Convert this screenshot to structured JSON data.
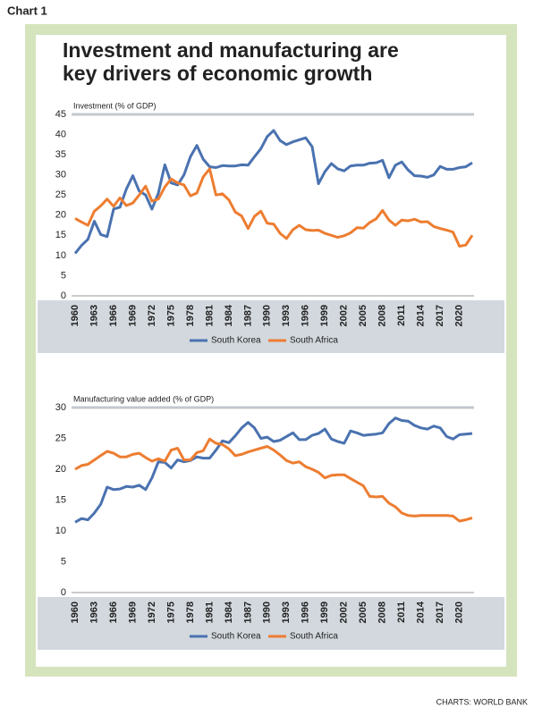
{
  "header": {
    "label": "Chart 1",
    "title": [
      "Investment and manufacturing are",
      "key drivers of economic growth"
    ]
  },
  "source": "CHARTS: WORLD BANK",
  "chart_data": [
    {
      "type": "line",
      "y_label": "Investment (% of GDP)",
      "x": [
        1960,
        1961,
        1962,
        1963,
        1964,
        1965,
        1966,
        1967,
        1968,
        1969,
        1970,
        1971,
        1972,
        1973,
        1974,
        1975,
        1976,
        1977,
        1978,
        1979,
        1980,
        1981,
        1982,
        1983,
        1984,
        1985,
        1986,
        1987,
        1988,
        1989,
        1990,
        1991,
        1992,
        1993,
        1994,
        1995,
        1996,
        1997,
        1998,
        1999,
        2000,
        2001,
        2002,
        2003,
        2004,
        2005,
        2006,
        2007,
        2008,
        2009,
        2010,
        2011,
        2012,
        2013,
        2014,
        2015,
        2016,
        2017,
        2018,
        2019,
        2020,
        2021,
        2022
      ],
      "xlim": [
        1960,
        2022
      ],
      "xticks": [
        1960,
        1963,
        1966,
        1969,
        1972,
        1975,
        1978,
        1981,
        1984,
        1987,
        1990,
        1993,
        1996,
        1999,
        2002,
        2005,
        2008,
        2011,
        2014,
        2017,
        2020
      ],
      "ylim": [
        0,
        45
      ],
      "yticks": [
        0,
        5,
        10,
        15,
        20,
        25,
        30,
        35,
        40,
        45
      ],
      "grid": false,
      "series": [
        {
          "name": "South Korea",
          "color": "#4a72b0",
          "values": [
            10.5,
            12.5,
            14,
            18.5,
            15.2,
            14.7,
            21.5,
            22,
            26.5,
            29.8,
            26,
            25,
            21.5,
            25.5,
            32.5,
            28,
            27.5,
            30,
            34.5,
            37.3,
            33.9,
            32,
            31.8,
            32.3,
            32.2,
            32.2,
            32.5,
            32.4,
            34.5,
            36.5,
            39.5,
            41,
            38.5,
            37.5,
            38.2,
            38.7,
            39.2,
            37,
            27.8,
            30.8,
            32.8,
            31.5,
            31,
            32.2,
            32.4,
            32.4,
            32.9,
            33,
            33.6,
            29.3,
            32.4,
            33.2,
            31.2,
            29.8,
            29.7,
            29.4,
            30,
            32.1,
            31.4,
            31.4,
            31.8,
            32,
            33
          ]
        },
        {
          "name": "South Africa",
          "color": "#ed7d31",
          "values": [
            19.2,
            18.3,
            17.5,
            21,
            22.3,
            24,
            22.2,
            24.3,
            22.4,
            23,
            25,
            27.2,
            23.5,
            24,
            27,
            29,
            28,
            27.5,
            24.8,
            25.5,
            29.5,
            31.5,
            25,
            25.3,
            23.8,
            20.8,
            19.8,
            16.7,
            19.7,
            21,
            18,
            17.8,
            15.5,
            14.2,
            16.4,
            17.5,
            16.4,
            16.2,
            16.3,
            15.5,
            15,
            14.5,
            14.9,
            15.6,
            16.9,
            16.8,
            18.2,
            19.1,
            21.2,
            18.8,
            17.5,
            18.8,
            18.6,
            19,
            18.3,
            18.4,
            17.2,
            16.7,
            16.3,
            15.8,
            12.3,
            12.6,
            15
          ]
        }
      ]
    },
    {
      "type": "line",
      "y_label": "Manufacturing value added (% of GDP)",
      "x": [
        1960,
        1961,
        1962,
        1963,
        1964,
        1965,
        1966,
        1967,
        1968,
        1969,
        1970,
        1971,
        1972,
        1973,
        1974,
        1975,
        1976,
        1977,
        1978,
        1979,
        1980,
        1981,
        1982,
        1983,
        1984,
        1985,
        1986,
        1987,
        1988,
        1989,
        1990,
        1991,
        1992,
        1993,
        1994,
        1995,
        1996,
        1997,
        1998,
        1999,
        2000,
        2001,
        2002,
        2003,
        2004,
        2005,
        2006,
        2007,
        2008,
        2009,
        2010,
        2011,
        2012,
        2013,
        2014,
        2015,
        2016,
        2017,
        2018,
        2019,
        2020,
        2021,
        2022
      ],
      "xlim": [
        1960,
        2022
      ],
      "xticks": [
        1960,
        1963,
        1966,
        1969,
        1972,
        1975,
        1978,
        1981,
        1984,
        1987,
        1990,
        1993,
        1996,
        1999,
        2002,
        2005,
        2008,
        2011,
        2014,
        2017,
        2020
      ],
      "ylim": [
        0,
        30
      ],
      "yticks": [
        0,
        5,
        10,
        15,
        20,
        25,
        30
      ],
      "grid": false,
      "series": [
        {
          "name": "South Korea",
          "color": "#4a72b0",
          "values": [
            11.4,
            12,
            11.8,
            12.9,
            14.3,
            17.1,
            16.7,
            16.8,
            17.2,
            17.1,
            17.4,
            16.7,
            18.6,
            21.2,
            21.1,
            20.2,
            21.5,
            21.2,
            21.4,
            22,
            21.8,
            21.8,
            23.1,
            24.6,
            24.3,
            25.4,
            26.7,
            27.6,
            26.7,
            25,
            25.2,
            24.5,
            24.7,
            25.3,
            25.9,
            24.8,
            24.8,
            25.5,
            25.8,
            26.5,
            24.9,
            24.5,
            24.2,
            26.2,
            25.9,
            25.5,
            25.6,
            25.7,
            25.9,
            27.4,
            28.3,
            27.9,
            27.8,
            27.1,
            26.7,
            26.5,
            27,
            26.7,
            25.3,
            24.9,
            25.6,
            25.7,
            25.8
          ]
        },
        {
          "name": "South Africa",
          "color": "#ed7d31",
          "values": [
            20,
            20.6,
            20.8,
            21.5,
            22.2,
            22.9,
            22.6,
            22,
            22,
            22.4,
            22.6,
            21.9,
            21.3,
            21.7,
            21.3,
            23.1,
            23.4,
            21.5,
            21.5,
            22.7,
            23,
            24.9,
            24.2,
            24,
            23.3,
            22.2,
            22.4,
            22.8,
            23.1,
            23.4,
            23.7,
            23.1,
            22.3,
            21.4,
            21,
            21.2,
            20.4,
            20,
            19.5,
            18.6,
            19,
            19.1,
            19.1,
            18.5,
            17.9,
            17.3,
            15.6,
            15.5,
            15.6,
            14.5,
            13.9,
            12.9,
            12.5,
            12.4,
            12.5,
            12.5,
            12.5,
            12.5,
            12.5,
            12.4,
            11.6,
            11.8,
            12.1
          ]
        }
      ]
    }
  ]
}
